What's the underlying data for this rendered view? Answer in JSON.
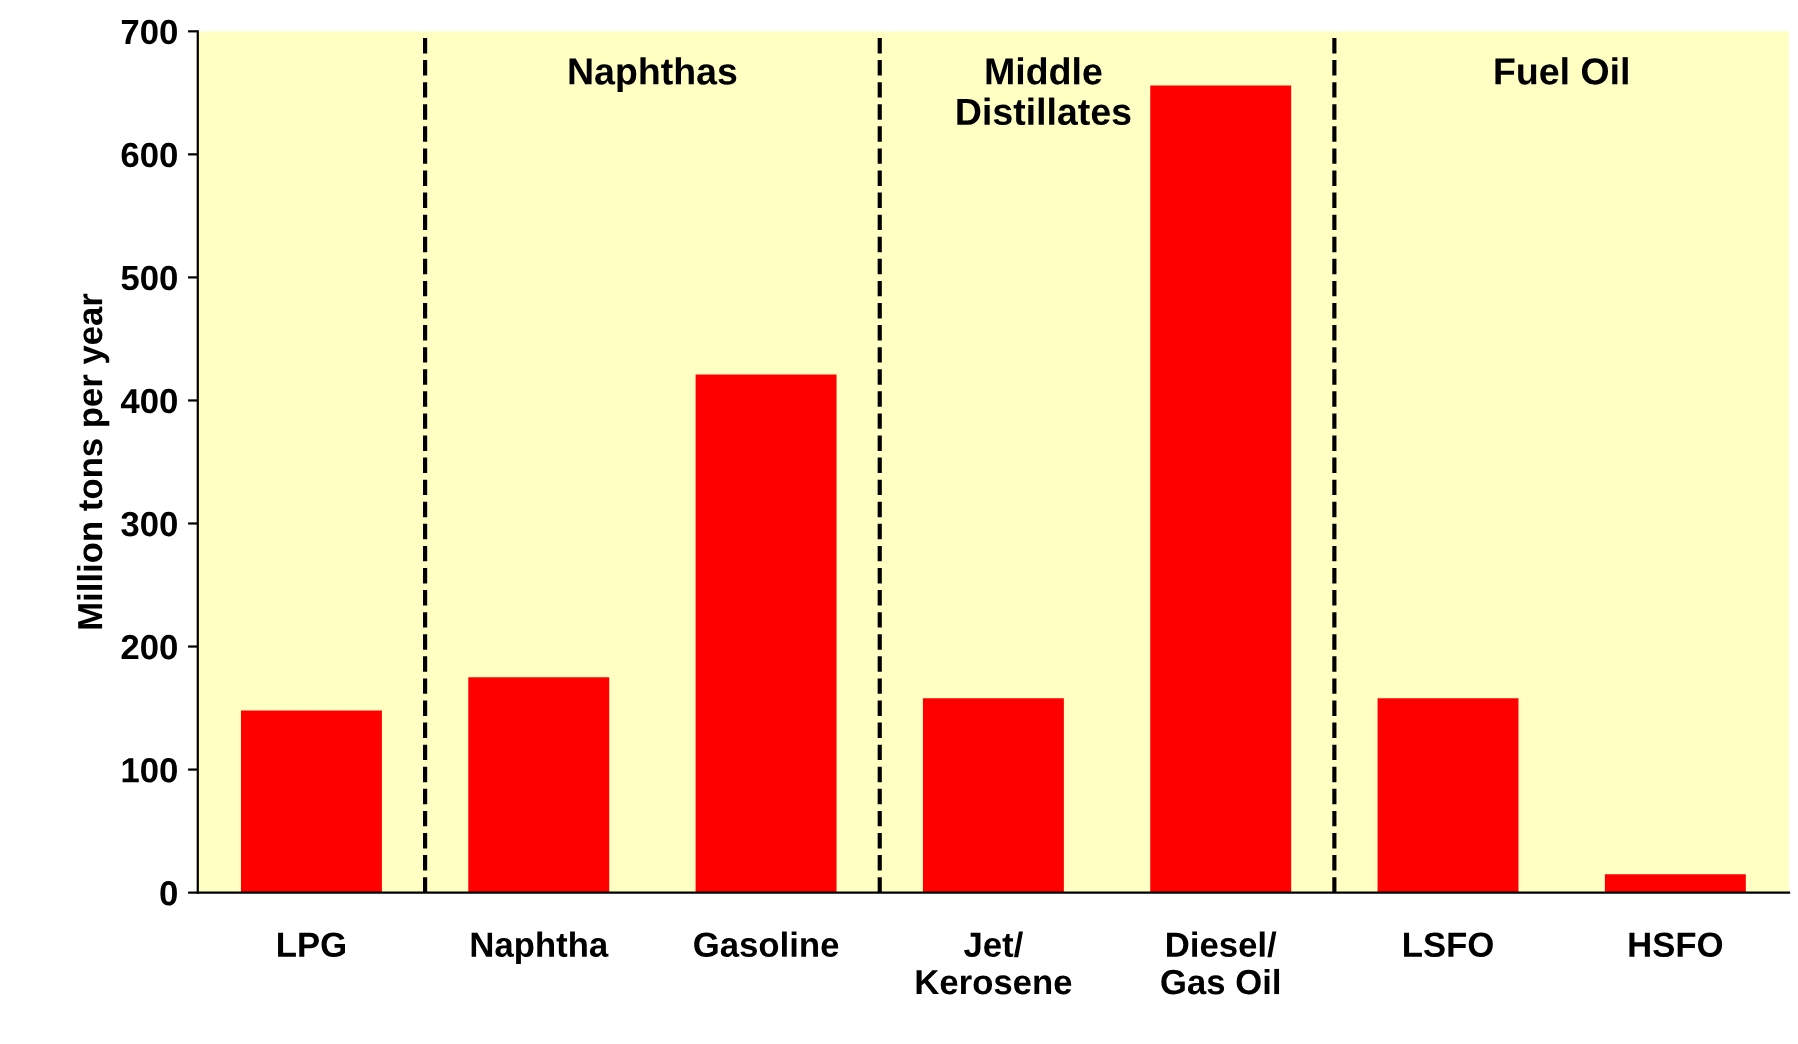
{
  "chart_data": {
    "type": "bar",
    "ylabel": "Million tons per year",
    "categories": [
      "LPG",
      "Naphtha",
      "Gasoline",
      "Jet/\nKerosene",
      "Diesel/\nGas Oil",
      "LSFO",
      "HSFO"
    ],
    "values": [
      148,
      175,
      421,
      158,
      656,
      158,
      15
    ],
    "color": "#ff0000",
    "ylim": [
      0,
      700
    ],
    "yticks": [
      0,
      100,
      200,
      300,
      400,
      500,
      600,
      700
    ],
    "annotations": [
      "Naphthas",
      "Middle\nDistillates",
      "Fuel Oil"
    ],
    "grid": false
  }
}
